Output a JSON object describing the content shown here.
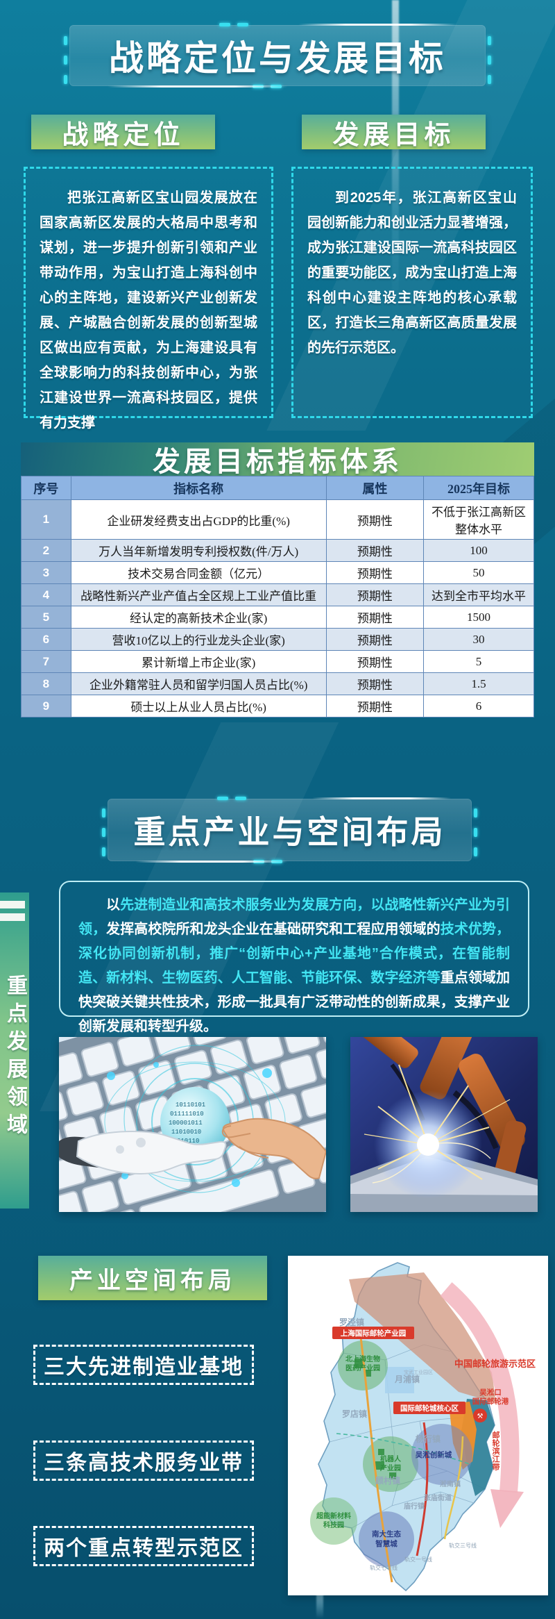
{
  "section1": {
    "banner": "战略定位与发展目标",
    "left": {
      "title": "战略定位",
      "body": "把张江高新区宝山园发展放在国家高新区发展的大格局中思考和谋划，进一步提升创新引领和产业带动作用，为宝山打造上海科创中心的主阵地，建设新兴产业创新发展、产城融合创新发展的创新型城区做出应有贡献，为上海建设具有全球影响力的科技创新中心，为张江建设世界一流高科技园区，提供有力支撑"
    },
    "right": {
      "title": "发展目标",
      "body": "到2025年，张江高新区宝山园创新能力和创业活力显著增强，成为张江建设国际一流高科技园区的重要功能区，成为宝山打造上海科创中心建设主阵地的核心承载区，打造长三角高新区高质量发展的先行示范区。"
    }
  },
  "indicators": {
    "title": "发展目标指标体系",
    "headers": [
      "序号",
      "指标名称",
      "属性",
      "2025年目标"
    ],
    "rows": [
      [
        "1",
        "企业研发经费支出占GDP的比重(%)",
        "预期性",
        "不低于张江高新区整体水平"
      ],
      [
        "2",
        "万人当年新增发明专利授权数(件/万人)",
        "预期性",
        "100"
      ],
      [
        "3",
        "技术交易合同金额（亿元）",
        "预期性",
        "50"
      ],
      [
        "4",
        "战略性新兴产业产值占全区规上工业产值比重",
        "预期性",
        "达到全市平均水平"
      ],
      [
        "5",
        "经认定的高新技术企业(家)",
        "预期性",
        "1500"
      ],
      [
        "6",
        "营收10亿以上的行业龙头企业(家)",
        "预期性",
        "30"
      ],
      [
        "7",
        "累计新增上市企业(家)",
        "预期性",
        "5"
      ],
      [
        "8",
        "企业外籍常驻人员和留学归国人员占比(%)",
        "预期性",
        "1.5"
      ],
      [
        "9",
        "硕士以上从业人员占比(%)",
        "预期性",
        "6"
      ]
    ]
  },
  "section2": {
    "banner": "重点产业与空间布局",
    "side_tab": "重点发展领域",
    "paragraph": [
      {
        "text": "以",
        "color": "white"
      },
      {
        "text": "先进制造业和高技术服务业为发展方向，以战略性新兴产业为引领，",
        "color": "cyan"
      },
      {
        "text": "发挥高校院所和龙头企业在基础研究和工程应用领域的",
        "color": "white"
      },
      {
        "text": "技术优势，深化协同创新机制，推广“创新中心+产业基地”合作模式，在智能制造、新材料、生物医药、人工智能、节能环保、数字经济等",
        "color": "cyan"
      },
      {
        "text": "重点领域加快突破关键共性技术，形成一批具有广泛带动性的创新成果，支撑产业创新发展和转型升级。",
        "color": "white"
      }
    ],
    "accent_cyan": "#43e6f4"
  },
  "section3": {
    "banner": "产业空间布局",
    "labels": [
      "三大先进制造业基地",
      "三条高技术服务业带",
      "两个重点转型示范区"
    ],
    "map": {
      "industrial_park_label": "上海国际邮轮产业园",
      "core_area_label": "国际邮轮城核心区",
      "demo_zone_label": "中国邮轮旅游示范区",
      "port_label_1": "吴淞口",
      "port_label_2": "国际邮轮港",
      "riverside_label": "邮轮滨江带",
      "factory_label": "宝武工业园区",
      "parks": [
        {
          "l1": "北上海生物",
          "l2": "医药产业园"
        },
        {
          "l1": "机器人",
          "l2": "产业园"
        },
        {
          "l1": "超能新材料",
          "l2": "科技园"
        }
      ],
      "cities": [
        {
          "l1": "吴淞创新城",
          "l2": ""
        },
        {
          "l1": "南大生态",
          "l2": "智慧城"
        }
      ],
      "towns": [
        "罗泾镇",
        "月浦镇",
        "罗店镇",
        "杨行镇",
        "顾村镇",
        "庙行镇",
        "张庙街道",
        "淞南镇"
      ],
      "rails": [
        "轨交一号线",
        "轨交三号线",
        "轨交七号线"
      ],
      "red": "#d93a2b",
      "green": "#3d9a4e",
      "navy": "#2b3f87"
    }
  }
}
